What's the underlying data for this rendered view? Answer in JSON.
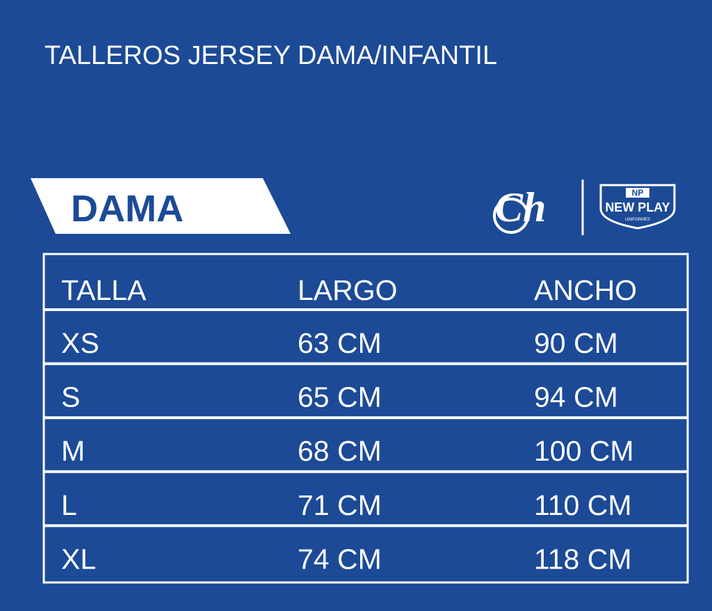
{
  "header": {
    "title": "TALLEROS JERSEY DAMA/INFANTIL"
  },
  "section": {
    "label": "DAMA"
  },
  "logos": {
    "ch": "Ch",
    "np": "NP",
    "brand": "NEW PLAY",
    "tagline": "UNIFORMES"
  },
  "table": {
    "columns": [
      "TALLA",
      "LARGO",
      "ANCHO"
    ],
    "rows": [
      [
        "XS",
        "63 CM",
        "90 CM"
      ],
      [
        "S",
        "65 CM",
        "94 CM"
      ],
      [
        "M",
        "68 CM",
        "100 CM"
      ],
      [
        "L",
        "71 CM",
        "110 CM"
      ],
      [
        "XL",
        "74 CM",
        "118 CM"
      ]
    ]
  }
}
